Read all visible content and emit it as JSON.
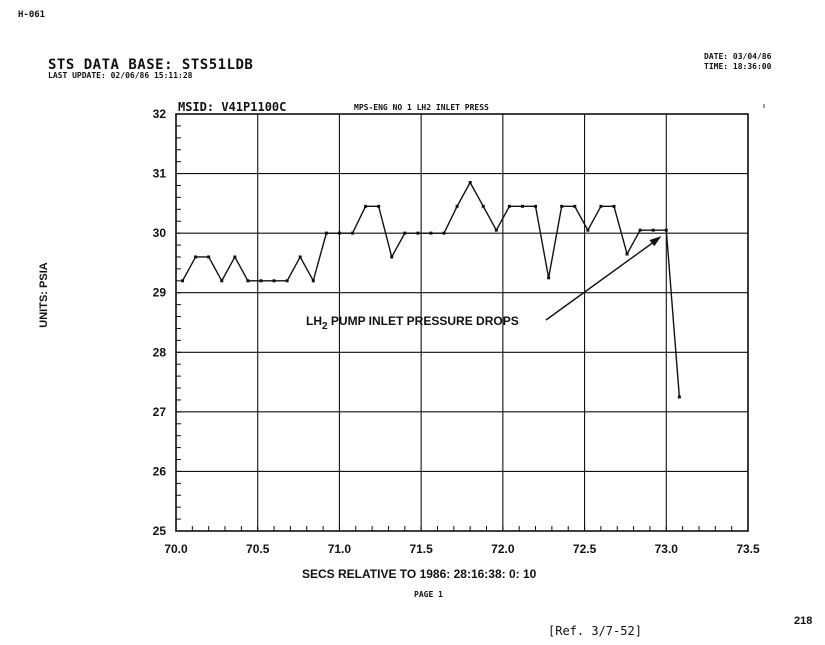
{
  "header": {
    "doc_id": "H-061",
    "database": "STS DATA BASE: STS51LDB",
    "last_update": "LAST UPDATE: 02/06/86  15:11:28",
    "date": "DATE: 03/04/86",
    "time": "TIME: 18:36:00"
  },
  "footer": {
    "page": "PAGE   1",
    "page_number": "218",
    "reference": "[Ref. 3/7-52]"
  },
  "chart_data": {
    "type": "line",
    "title": "MSID: V41P1100C",
    "subtitle": "MPS-ENG NO 1 LH2 INLET PRESS",
    "ylabel": "UNITS:  PSIA",
    "xlabel": "SECS RELATIVE TO 1986:  28:16:38: 0: 10",
    "xlim": [
      70.0,
      73.5
    ],
    "ylim": [
      25,
      32
    ],
    "x_ticks": [
      "70.0",
      "70.5",
      "71.0",
      "71.5",
      "72.0",
      "72.5",
      "73.0",
      "73.5"
    ],
    "y_ticks": [
      "25",
      "26",
      "27",
      "28",
      "29",
      "30",
      "31",
      "32"
    ],
    "grid": true,
    "annotation": {
      "text_main": "LH",
      "text_sub": "2",
      "text_rest": " PUMP INLET PRESSURE DROPS",
      "points_to": [
        72.97,
        29.95
      ]
    },
    "series": [
      {
        "x": [
          70.04,
          70.12,
          70.2,
          70.28,
          70.36,
          70.44,
          70.52,
          70.6,
          70.68,
          70.76,
          70.84,
          70.92,
          71.0,
          71.08,
          71.16,
          71.24,
          71.32,
          71.4,
          71.48,
          71.56,
          71.64,
          71.72,
          71.8,
          71.88,
          71.96,
          72.04,
          72.12,
          72.2,
          72.28,
          72.36,
          72.44,
          72.52,
          72.6,
          72.68,
          72.76,
          72.84,
          72.92,
          73.0,
          73.08
        ],
        "y": [
          29.2,
          29.6,
          29.6,
          29.2,
          29.6,
          29.2,
          29.2,
          29.2,
          29.2,
          29.6,
          29.2,
          30.0,
          30.0,
          30.0,
          30.45,
          30.45,
          29.6,
          30.0,
          30.0,
          30.0,
          30.0,
          30.45,
          30.85,
          30.45,
          30.05,
          30.45,
          30.45,
          30.45,
          29.25,
          30.45,
          30.45,
          30.05,
          30.45,
          30.45,
          29.65,
          30.05,
          30.05,
          30.05,
          27.25
        ]
      }
    ]
  }
}
